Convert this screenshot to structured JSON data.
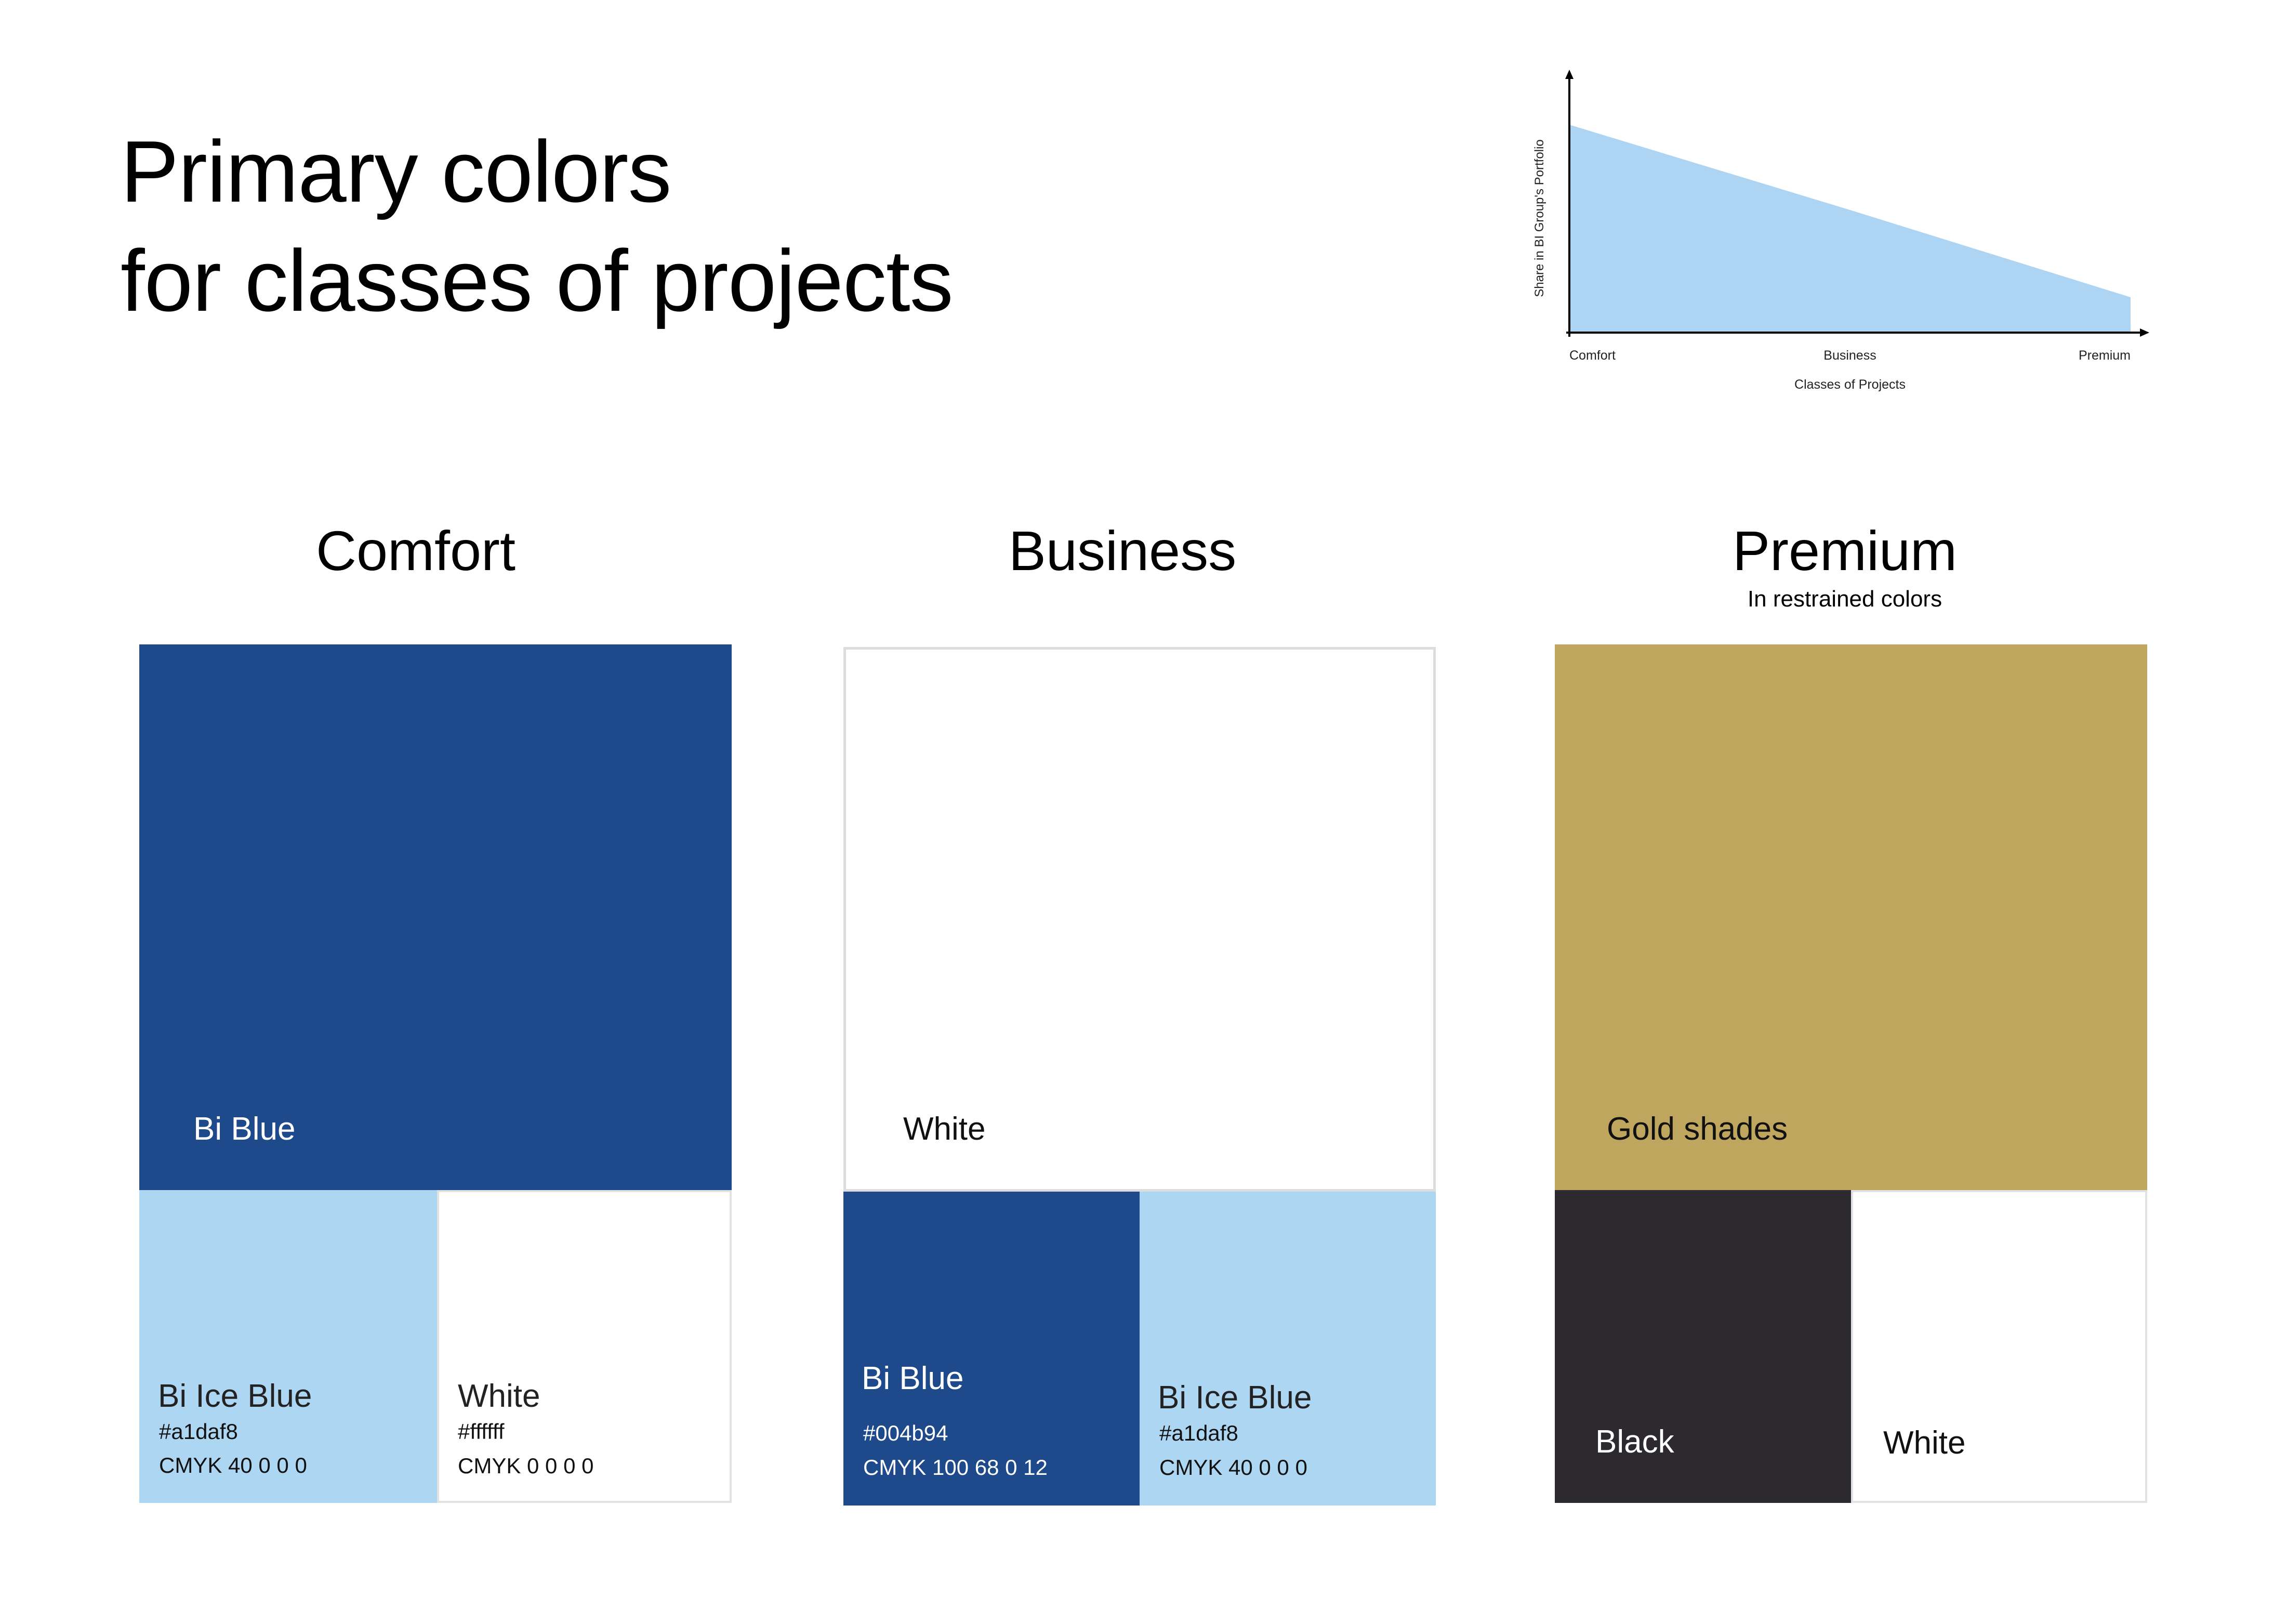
{
  "title": {
    "line1": "Primary colors",
    "line2": "for classes of projects"
  },
  "chart_data": {
    "type": "area",
    "categories": [
      "Comfort",
      "Business",
      "Premium"
    ],
    "xlabel": "Classes of Projects",
    "ylabel": "Share in BI Group's Portfolio",
    "values": [
      1.0,
      0.59,
      0.17
    ],
    "ylim": [
      0,
      1.05
    ],
    "fill_color": "#add5f3",
    "grid": false
  },
  "classes": {
    "comfort": {
      "title": "Comfort",
      "main": {
        "name": "Bi Blue",
        "color": "#1e4a8c"
      },
      "sub1": {
        "name": "Bi Ice Blue",
        "hex": "#a1daf8",
        "cmyk": "CMYK 40 0 0 0",
        "color": "#add6f3"
      },
      "sub2": {
        "name": "White",
        "hex": "#ffffff",
        "cmyk": "CMYK 0 0 0 0",
        "color": "#ffffff"
      }
    },
    "business": {
      "title": "Business",
      "main": {
        "name": "White",
        "color": "#ffffff"
      },
      "sub1": {
        "name": "Bi Blue",
        "hex": "#004b94",
        "cmyk": "CMYK 100 68 0 12",
        "color": "#1e4a8c"
      },
      "sub2": {
        "name": "Bi Ice Blue",
        "hex": "#a1daf8",
        "cmyk": "CMYK 40 0 0 0",
        "color": "#add6f3"
      }
    },
    "premium": {
      "title": "Premium",
      "subtitle": "In restrained colors",
      "main": {
        "name": "Gold shades",
        "color": "#bfa65f"
      },
      "sub1": {
        "name": "Black",
        "color": "#2d2a2f"
      },
      "sub2": {
        "name": "White",
        "color": "#ffffff"
      }
    }
  }
}
